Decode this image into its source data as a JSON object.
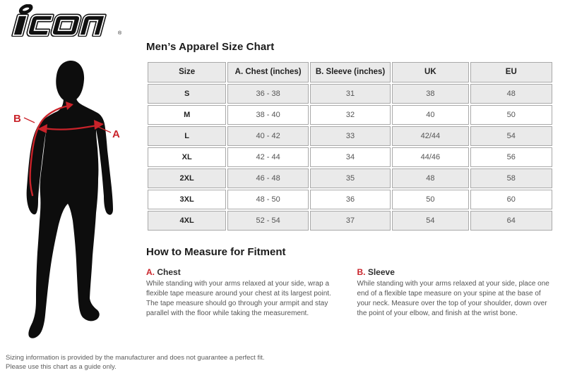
{
  "brand": {
    "logo_text": "icon",
    "registered_mark": "®"
  },
  "figure": {
    "label_a": "A",
    "label_b": "B"
  },
  "size_chart": {
    "title": "Men’s Apparel Size Chart",
    "columns": [
      "Size",
      "A. Chest (inches)",
      "B. Sleeve (inches)",
      "UK",
      "EU"
    ],
    "rows": [
      [
        "S",
        "36 - 38",
        "31",
        "38",
        "48"
      ],
      [
        "M",
        "38 - 40",
        "32",
        "40",
        "50"
      ],
      [
        "L",
        "40 - 42",
        "33",
        "42/44",
        "54"
      ],
      [
        "XL",
        "42 - 44",
        "34",
        "44/46",
        "56"
      ],
      [
        "2XL",
        "46 - 48",
        "35",
        "48",
        "58"
      ],
      [
        "3XL",
        "48 - 50",
        "36",
        "50",
        "60"
      ],
      [
        "4XL",
        "52 - 54",
        "37",
        "54",
        "64"
      ]
    ]
  },
  "measure_guide": {
    "title": "How to Measure for Fitment",
    "sections": [
      {
        "prefix": "A.",
        "label": "Chest",
        "text": "While standing with your arms relaxed at your side, wrap a flexible tape measure around your chest at its largest point. The tape measure should go through your armpit and stay parallel with the floor while taking the measurement."
      },
      {
        "prefix": "B.",
        "label": "Sleeve",
        "text": "While standing with your arms relaxed at your side, place one end of a flexible tape measure on your spine at the base of your neck. Measure over the top of your shoulder, down over the point of your elbow, and finish at the wrist bone."
      }
    ]
  },
  "disclaimer": {
    "line1": "Sizing information is provided by the manufacturer and does not guarantee a perfect fit.",
    "line2": "Please use this chart as a guide only."
  },
  "colors": {
    "accent_red": "#c9232a",
    "row_stripe": "#eaeaea",
    "table_border": "#a9a9a9"
  }
}
